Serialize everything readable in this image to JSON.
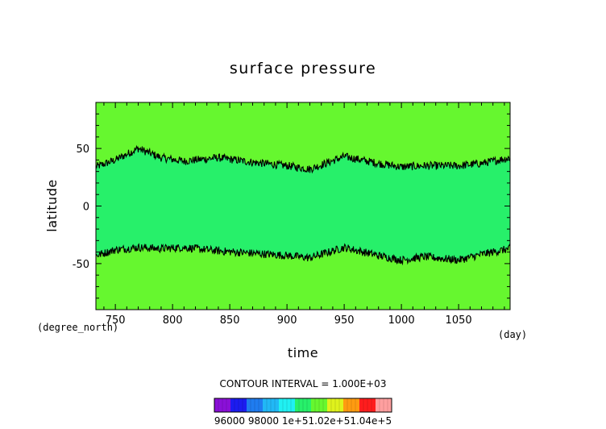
{
  "colors": {
    "inner_band": "#27f06a",
    "outer_band": "#66f72f",
    "contour_line": "#000000",
    "frame": "#000000"
  },
  "chart_data": {
    "type": "heatmap",
    "title": "surface pressure",
    "xlabel": "time",
    "ylabel": "latitude",
    "x_unit": "(day)",
    "y_unit": "(degree_north)",
    "xlim": [
      733,
      1095
    ],
    "ylim": [
      -90,
      90
    ],
    "x_ticks": [
      750,
      800,
      850,
      900,
      950,
      1000,
      1050
    ],
    "y_ticks": [
      50,
      0,
      -50
    ],
    "contour_interval_text": "CONTOUR INTERVAL = 1.000E+03",
    "contour_levels_north": {
      "x": [
        733,
        750,
        770,
        790,
        810,
        840,
        870,
        900,
        920,
        950,
        980,
        1000,
        1020,
        1050,
        1070,
        1095
      ],
      "y": [
        34,
        40,
        50,
        42,
        39,
        42,
        38,
        35,
        32,
        43,
        37,
        34,
        35,
        35,
        37,
        42
      ]
    },
    "contour_levels_south": {
      "x": [
        733,
        750,
        770,
        790,
        810,
        840,
        870,
        900,
        920,
        950,
        980,
        1000,
        1020,
        1050,
        1070,
        1095
      ],
      "y": [
        -43,
        -38,
        -36,
        -37,
        -36,
        -39,
        -41,
        -43,
        -45,
        -36,
        -43,
        -47,
        -44,
        -47,
        -42,
        -37
      ]
    },
    "colorbar": {
      "colors": [
        "#8a10d8",
        "#1c1cf0",
        "#1f7cf0",
        "#21b8f6",
        "#20f0f2",
        "#27f06a",
        "#66f72f",
        "#dff21c",
        "#ff9b10",
        "#ff1d1d",
        "#ff9f9f"
      ],
      "labels": [
        "96000",
        "98000",
        "1e+5",
        "1.02e+5",
        "1.04e+5"
      ],
      "label_text": "96000 98000 1e+51.02e+51.04e+5"
    }
  }
}
